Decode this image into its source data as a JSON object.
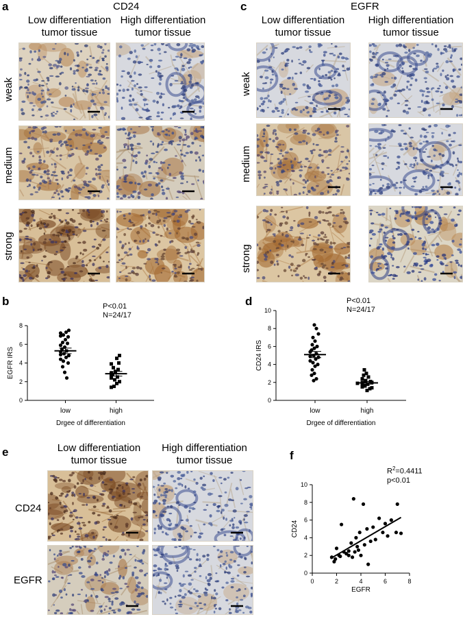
{
  "panels": {
    "a": {
      "label": "a",
      "title": "CD24",
      "col_low": [
        "Low differentiation",
        "tumor tissue"
      ],
      "col_high": [
        "High differentiation",
        "tumor tissue"
      ],
      "rows": [
        "weak",
        "medium",
        "strong"
      ]
    },
    "c": {
      "label": "c",
      "title": "EGFR",
      "col_low": [
        "Low differentiation",
        "tumor tissue"
      ],
      "col_high": [
        "High differentiation",
        "tumor tissue"
      ],
      "rows": [
        "weak",
        "medium",
        "strong"
      ]
    },
    "e": {
      "label": "e",
      "col_low": [
        "Low differentiation",
        "tumor tissue"
      ],
      "col_high": [
        "High differentiation",
        "tumor tissue"
      ],
      "rows": [
        "CD24",
        "EGFR"
      ]
    },
    "b": {
      "label": "b",
      "stat": [
        "P<0.01",
        "N=24/17"
      ]
    },
    "d": {
      "label": "d",
      "stat": [
        "P<0.01",
        "N=24/17"
      ]
    },
    "f": {
      "label": "f",
      "stat_r2_prefix": "R",
      "stat_r2_sup": "2",
      "stat_r2_value": "=0.4411",
      "stat_p": "p<0.01"
    }
  },
  "colors": {
    "tissue_bg": "#e8dcc6",
    "nuclei": "#3b4f8c",
    "brown": "#a06a3a",
    "dark_brown": "#5a3420"
  },
  "chart_data": [
    {
      "panel": "b",
      "type": "scatter",
      "categories": [
        "low",
        "high"
      ],
      "xlabel": "Drgee of differentiation",
      "ylabel": "EGFR IRS",
      "ylim": [
        0,
        8
      ],
      "yticks": [
        0,
        2,
        4,
        6,
        8
      ],
      "series": [
        {
          "category": "low",
          "marker": "circle",
          "values": [
            7.5,
            7.3,
            7.2,
            7.0,
            6.9,
            6.8,
            6.5,
            6.2,
            6.1,
            5.9,
            5.7,
            5.5,
            5.3,
            5.2,
            5.0,
            4.9,
            4.8,
            4.6,
            4.4,
            4.2,
            4.0,
            3.6,
            3.0,
            2.4
          ],
          "mean": 5.3,
          "sem": 0.3
        },
        {
          "category": "high",
          "marker": "square",
          "values": [
            4.8,
            4.5,
            4.0,
            3.9,
            3.5,
            3.3,
            3.1,
            2.9,
            2.8,
            2.7,
            2.5,
            2.4,
            2.2,
            2.0,
            1.8,
            1.5,
            1.4
          ],
          "mean": 2.85,
          "sem": 0.25
        }
      ]
    },
    {
      "panel": "d",
      "type": "scatter",
      "categories": [
        "low",
        "high"
      ],
      "xlabel": "Drgee of differentiation",
      "ylabel": "CD24 IRS",
      "ylim": [
        0,
        10
      ],
      "yticks": [
        0,
        2,
        4,
        6,
        8,
        10
      ],
      "series": [
        {
          "category": "low",
          "marker": "circle",
          "values": [
            8.4,
            8.0,
            7.4,
            7.0,
            6.6,
            6.2,
            6.0,
            5.8,
            5.6,
            5.4,
            5.2,
            5.0,
            4.9,
            4.8,
            4.6,
            4.4,
            4.2,
            4.0,
            3.8,
            3.4,
            3.0,
            2.8,
            2.4,
            2.2
          ],
          "mean": 5.1,
          "sem": 0.35
        },
        {
          "category": "high",
          "marker": "square",
          "values": [
            3.4,
            3.0,
            2.8,
            2.6,
            2.4,
            2.2,
            2.1,
            2.0,
            2.0,
            1.9,
            1.8,
            1.7,
            1.6,
            1.5,
            1.4,
            1.3,
            1.1
          ],
          "mean": 1.95,
          "sem": 0.15
        }
      ]
    },
    {
      "panel": "f",
      "type": "scatter",
      "xlabel": "EGFR",
      "ylabel": "CD24",
      "xlim": [
        0,
        8
      ],
      "ylim": [
        0,
        10
      ],
      "xticks": [
        0,
        2,
        4,
        6,
        8
      ],
      "yticks": [
        0,
        2,
        4,
        6,
        8,
        10
      ],
      "points": [
        [
          1.6,
          1.8
        ],
        [
          1.8,
          1.3
        ],
        [
          1.9,
          1.6
        ],
        [
          2.0,
          2.8
        ],
        [
          2.2,
          2.0
        ],
        [
          2.3,
          1.9
        ],
        [
          2.4,
          5.5
        ],
        [
          2.6,
          2.4
        ],
        [
          2.8,
          2.2
        ],
        [
          3.0,
          2.0
        ],
        [
          3.0,
          2.5
        ],
        [
          3.2,
          3.4
        ],
        [
          3.3,
          1.8
        ],
        [
          3.4,
          8.4
        ],
        [
          3.5,
          2.4
        ],
        [
          3.6,
          4.0
        ],
        [
          3.7,
          3.0
        ],
        [
          3.8,
          2.6
        ],
        [
          3.9,
          4.6
        ],
        [
          4.0,
          2.0
        ],
        [
          4.2,
          7.8
        ],
        [
          4.3,
          3.2
        ],
        [
          4.5,
          5.0
        ],
        [
          4.6,
          1.0
        ],
        [
          4.8,
          3.6
        ],
        [
          5.0,
          5.2
        ],
        [
          5.2,
          3.8
        ],
        [
          5.5,
          6.2
        ],
        [
          5.8,
          4.6
        ],
        [
          6.0,
          5.6
        ],
        [
          6.2,
          4.2
        ],
        [
          6.5,
          6.0
        ],
        [
          6.9,
          4.6
        ],
        [
          7.0,
          7.8
        ],
        [
          7.3,
          4.5
        ]
      ],
      "fit": {
        "x": [
          1.5,
          7.3
        ],
        "y": [
          1.65,
          6.3
        ]
      }
    }
  ]
}
